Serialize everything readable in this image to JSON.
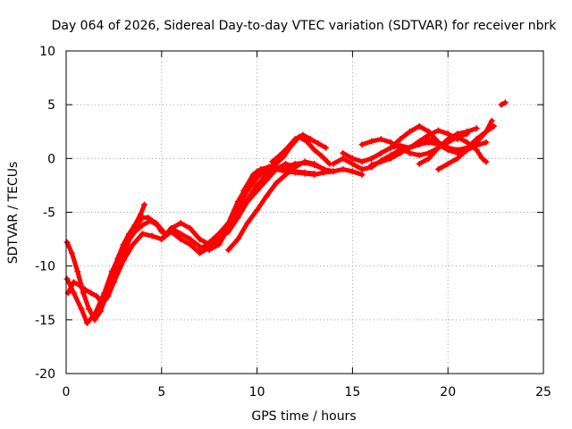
{
  "chart_data": {
    "type": "scatter",
    "title": "Day 064 of 2026, Sidereal Day-to-day VTEC variation (SDTVAR) for receiver nbrk",
    "xlabel": "GPS time / hours",
    "ylabel": "SDTVAR / TECUs",
    "xlim": [
      0,
      25
    ],
    "ylim": [
      -20,
      10
    ],
    "x_ticks": [
      0,
      5,
      10,
      15,
      20,
      25
    ],
    "y_ticks": [
      -20,
      -15,
      -10,
      -5,
      0,
      5,
      10
    ],
    "grid": true,
    "legend": "none",
    "marker": "plus",
    "color": "#ff0000",
    "series": [
      {
        "x": [
          0.05,
          0.3,
          0.6,
          0.9,
          1.2,
          1.5,
          1.8,
          2.1,
          2.4,
          2.7,
          3.0,
          3.3,
          3.6,
          3.9,
          4.1
        ],
        "y": [
          -7.8,
          -8.8,
          -10.5,
          -12.5,
          -14.0,
          -15.0,
          -14.2,
          -12.8,
          -11.0,
          -9.3,
          -8.0,
          -7.0,
          -6.2,
          -5.2,
          -4.3
        ]
      },
      {
        "x": [
          0.05,
          0.4,
          0.8,
          1.1,
          1.5,
          2.0,
          2.4,
          2.8,
          3.2,
          3.6,
          4.0,
          4.4,
          4.8,
          5.2
        ],
        "y": [
          -11.2,
          -12.5,
          -14.0,
          -15.3,
          -14.5,
          -12.5,
          -10.5,
          -9.0,
          -7.8,
          -6.8,
          -6.2,
          -5.8,
          -6.2,
          -7.0
        ]
      },
      {
        "x": [
          0.1,
          0.4,
          0.7,
          1.0,
          1.3,
          1.6,
          1.9,
          2.2,
          2.5,
          2.8,
          3.1,
          3.4,
          3.7,
          4.0,
          4.3,
          4.7,
          5.0
        ],
        "y": [
          -12.5,
          -11.5,
          -11.8,
          -12.2,
          -12.5,
          -12.8,
          -13.5,
          -12.8,
          -11.5,
          -10.0,
          -8.5,
          -7.2,
          -6.2,
          -5.5,
          -5.5,
          -6.0,
          -6.8
        ]
      },
      {
        "x": [
          2.5,
          3.0,
          3.5,
          4.0,
          4.5,
          5.0,
          5.5,
          6.0,
          6.5,
          7.0,
          7.5,
          8.0,
          8.5,
          9.0,
          9.5,
          10.0,
          10.5,
          11.0,
          11.5,
          12.0,
          12.5,
          13.0,
          13.5,
          14.0
        ],
        "y": [
          -11.5,
          -9.5,
          -8.0,
          -7.0,
          -7.2,
          -7.5,
          -6.5,
          -7.0,
          -7.5,
          -8.2,
          -8.5,
          -8.0,
          -6.5,
          -4.5,
          -3.0,
          -1.8,
          -1.0,
          -1.0,
          -1.2,
          -1.3,
          -1.4,
          -1.5,
          -1.3,
          -1.2
        ]
      },
      {
        "x": [
          5.0,
          5.5,
          6.0,
          6.5,
          7.0,
          7.5,
          8.0,
          8.5,
          9.0,
          9.5,
          10.0,
          10.5,
          11.0,
          11.5,
          12.0,
          12.5,
          13.0
        ],
        "y": [
          -7.5,
          -6.8,
          -7.5,
          -8.0,
          -8.8,
          -8.3,
          -7.5,
          -6.0,
          -4.0,
          -2.5,
          -1.2,
          -1.0,
          -0.8,
          -1.0,
          -1.2,
          -1.3,
          -1.4
        ]
      },
      {
        "x": [
          5.5,
          6.0,
          6.5,
          7.0,
          7.5,
          8.0,
          8.5,
          9.0,
          9.5,
          10.0,
          10.5,
          11.0,
          11.5,
          12.0
        ],
        "y": [
          -6.5,
          -6.0,
          -6.5,
          -7.5,
          -8.0,
          -7.5,
          -6.8,
          -5.5,
          -4.0,
          -3.0,
          -2.0,
          -1.0,
          -0.5,
          -0.8
        ]
      },
      {
        "x": [
          7.0,
          7.5,
          8.0,
          8.5,
          9.0,
          9.5,
          10.0,
          10.5,
          11.0,
          11.5,
          12.0,
          12.5,
          13.0,
          13.5,
          13.8
        ],
        "y": [
          -8.5,
          -7.8,
          -7.0,
          -6.0,
          -5.0,
          -3.8,
          -2.5,
          -1.5,
          -1.0,
          -0.8,
          -0.5,
          -0.4,
          -0.6,
          -1.0,
          -1.2
        ]
      },
      {
        "x": [
          8.5,
          9.0,
          9.5,
          10.0,
          10.5,
          11.0,
          11.5,
          12.0,
          12.5,
          13.0,
          13.5,
          14.0,
          14.5,
          15.0,
          15.5
        ],
        "y": [
          -8.5,
          -7.5,
          -6.0,
          -4.8,
          -3.5,
          -2.3,
          -1.5,
          -0.8,
          -0.3,
          -0.5,
          -1.0,
          -1.2,
          -1.0,
          -1.2,
          -1.5
        ]
      },
      {
        "x": [
          9.3,
          9.8,
          10.2,
          10.6,
          11.0,
          11.4,
          11.8,
          12.2,
          12.6,
          13.0,
          13.4,
          13.8
        ],
        "y": [
          -3.0,
          -1.5,
          -1.0,
          -0.8,
          -0.5,
          0.2,
          1.2,
          2.0,
          1.6,
          0.8,
          0.2,
          -0.5
        ]
      },
      {
        "x": [
          10.8,
          11.2,
          11.6,
          12.0,
          12.4,
          12.8,
          13.2,
          13.6
        ],
        "y": [
          -0.3,
          0.3,
          1.0,
          1.8,
          2.2,
          1.8,
          1.4,
          1.0
        ]
      },
      {
        "x": [
          14.0,
          14.5,
          15.0,
          15.5,
          16.0,
          16.5,
          17.0,
          17.5,
          18.0,
          18.5,
          19.0,
          19.5,
          20.0,
          20.5,
          21.0,
          21.5,
          22.0
        ],
        "y": [
          -0.5,
          0.0,
          -0.5,
          -1.0,
          -0.8,
          -0.2,
          0.3,
          0.8,
          1.0,
          1.3,
          1.5,
          1.3,
          0.8,
          0.5,
          0.8,
          1.2,
          1.5
        ]
      },
      {
        "x": [
          14.5,
          15.0,
          15.5,
          16.0,
          16.5,
          17.0,
          17.5,
          18.0,
          18.5,
          19.0,
          19.5,
          20.0,
          20.5,
          21.0,
          21.5,
          22.0,
          22.4
        ],
        "y": [
          0.5,
          0.0,
          -0.3,
          0.0,
          0.5,
          1.0,
          1.2,
          1.0,
          1.5,
          1.8,
          1.5,
          1.0,
          0.8,
          1.0,
          1.8,
          2.5,
          3.0
        ]
      },
      {
        "x": [
          15.5,
          16.0,
          16.5,
          17.0,
          17.5,
          18.0,
          18.5,
          19.0,
          19.5,
          20.0,
          20.5,
          21.0
        ],
        "y": [
          1.3,
          1.6,
          1.8,
          1.5,
          1.0,
          0.5,
          0.3,
          0.5,
          1.0,
          1.5,
          2.0,
          2.3
        ]
      },
      {
        "x": [
          16.0,
          16.5,
          17.0,
          17.5,
          18.0,
          18.5,
          19.0,
          19.5,
          20.0,
          20.5
        ],
        "y": [
          -0.6,
          -0.3,
          0.0,
          0.5,
          1.0,
          1.6,
          2.2,
          2.6,
          2.3,
          1.8
        ]
      },
      {
        "x": [
          17.0,
          17.5,
          18.0,
          18.5,
          19.0,
          19.5,
          20.0
        ],
        "y": [
          1.0,
          1.8,
          2.5,
          3.0,
          2.5,
          1.5,
          0.8
        ]
      },
      {
        "x": [
          18.5,
          19.0,
          19.5,
          20.0,
          20.5,
          21.0,
          21.5
        ],
        "y": [
          -0.5,
          0.0,
          1.0,
          1.8,
          2.3,
          2.5,
          2.8
        ]
      },
      {
        "x": [
          19.5,
          20.0,
          20.5,
          21.0,
          21.5,
          22.0,
          22.3
        ],
        "y": [
          -1.0,
          -0.5,
          0.0,
          0.8,
          1.5,
          2.5,
          3.5
        ]
      },
      {
        "x": [
          20.5,
          21.0,
          21.5,
          21.8,
          22.0
        ],
        "y": [
          2.0,
          1.5,
          0.8,
          0.0,
          -0.3
        ]
      },
      {
        "x": [
          22.8,
          23.0
        ],
        "y": [
          5.0,
          5.2
        ]
      }
    ]
  }
}
